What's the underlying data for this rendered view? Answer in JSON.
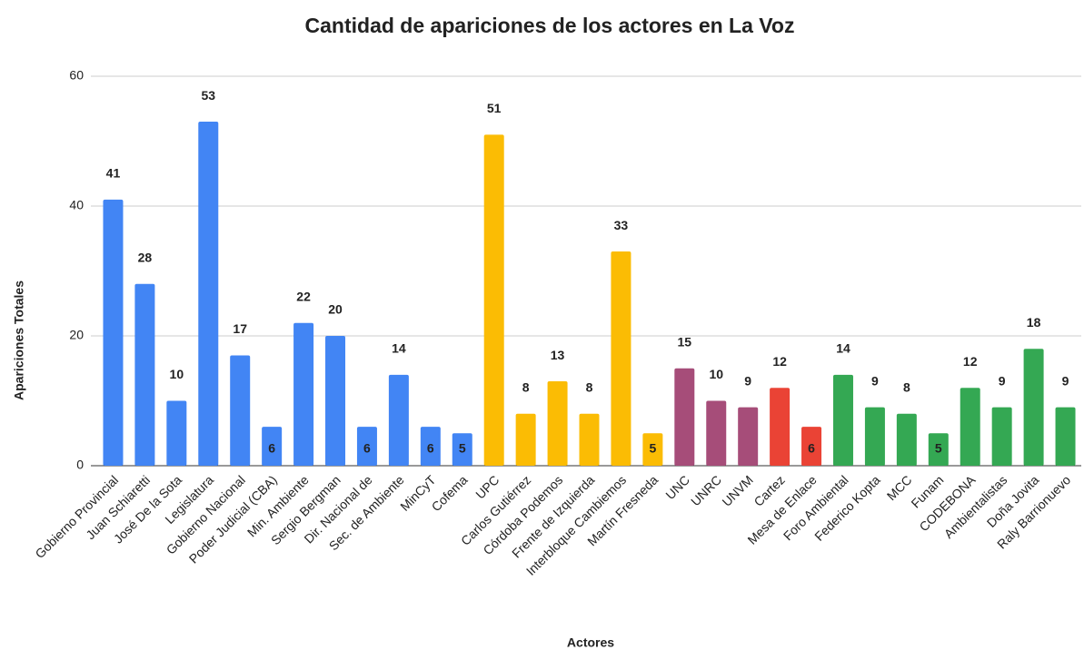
{
  "chart_data": {
    "type": "bar",
    "title": "Cantidad de apariciones de los actores en La Voz",
    "x_label": "Actores",
    "y_label": "Apariciones Totales",
    "categories": [
      "Gobierno Provincial",
      "Juan Schiaretti",
      "José De la Sota",
      "Legislatura",
      "Gobierno Nacional",
      "Poder Judicial (CBA)",
      "Min. Ambiente",
      "Sergio Bergman",
      "Dir. Nacional de",
      "Sec. de Ambiente",
      "MinCyT",
      "Cofema",
      "UPC",
      "Carlos Gutiérrez",
      "Córdoba Podemos",
      "Frente de Izquierda",
      "Interbloque Cambiemos",
      "Martín Fresneda",
      "UNC",
      "UNRC",
      "UNVM",
      "Cartez",
      "Mesa de Enlace",
      "Foro Ambiental",
      "Federico Kopta",
      "MCC",
      "Funam",
      "CODEBONA",
      "Ambientalistas",
      "Doña Jovita",
      "Raly Barrionuevo"
    ],
    "values": [
      41,
      28,
      10,
      53,
      17,
      6,
      22,
      20,
      6,
      14,
      6,
      5,
      51,
      8,
      13,
      8,
      33,
      5,
      15,
      10,
      9,
      12,
      6,
      14,
      9,
      8,
      5,
      12,
      9,
      18,
      9
    ],
    "colors": [
      "#4285f4",
      "#4285f4",
      "#4285f4",
      "#4285f4",
      "#4285f4",
      "#4285f4",
      "#4285f4",
      "#4285f4",
      "#4285f4",
      "#4285f4",
      "#4285f4",
      "#4285f4",
      "#fbbc04",
      "#fbbc04",
      "#fbbc04",
      "#fbbc04",
      "#fbbc04",
      "#fbbc04",
      "#a64d79",
      "#a64d79",
      "#a64d79",
      "#ea4335",
      "#ea4335",
      "#34a853",
      "#34a853",
      "#34a853",
      "#34a853",
      "#34a853",
      "#34a853",
      "#34a853",
      "#34a853"
    ],
    "ylim": [
      0,
      60
    ],
    "yticks": [
      0,
      20,
      40,
      60
    ],
    "grid": true
  }
}
